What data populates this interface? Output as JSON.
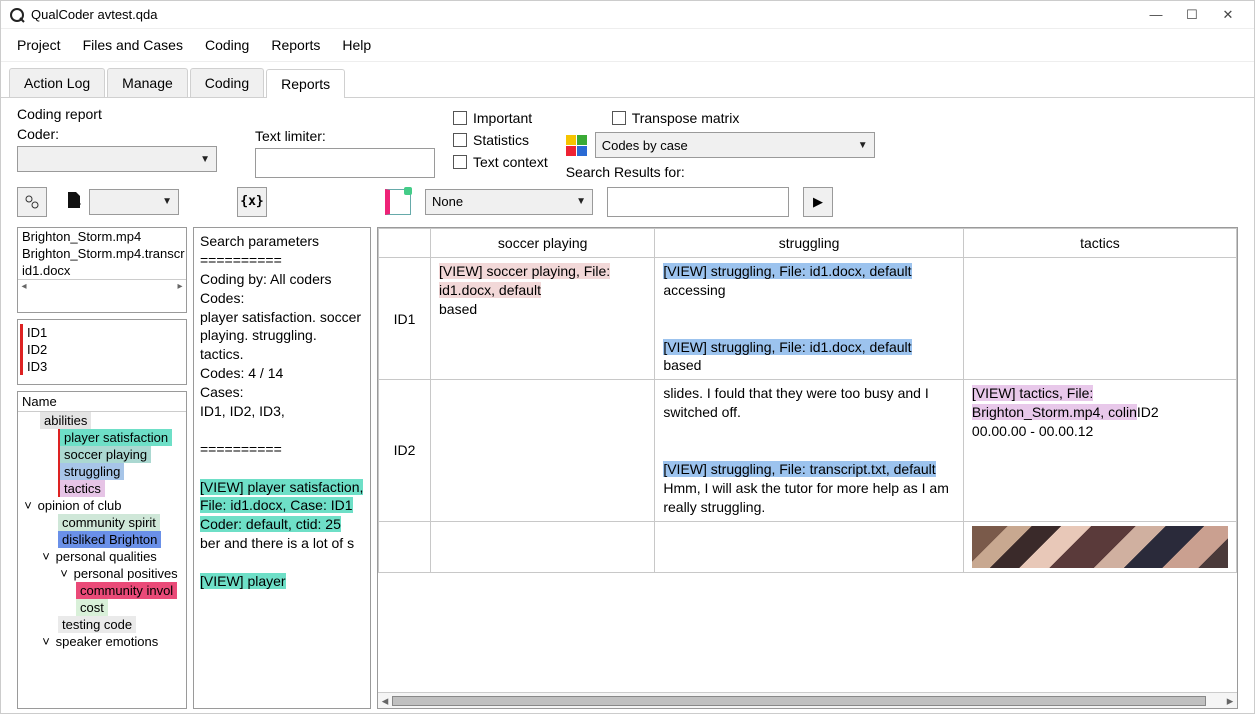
{
  "window": {
    "title": "QualCoder avtest.qda"
  },
  "menu": [
    "Project",
    "Files and Cases",
    "Coding",
    "Reports",
    "Help"
  ],
  "tabs": {
    "items": [
      "Action Log",
      "Manage",
      "Coding",
      "Reports"
    ],
    "active": 3
  },
  "controls": {
    "coding_report": "Coding report",
    "coder": "Coder:",
    "text_limiter": "Text limiter:",
    "chk_important": "Important",
    "chk_statistics": "Statistics",
    "chk_text_context": "Text context",
    "chk_transpose": "Transpose matrix",
    "matrix_combo": "Codes by case",
    "search_label": "Search Results for:",
    "filter_combo": "None"
  },
  "files_list": [
    "Brighton_Storm.mp4",
    "Brighton_Storm.mp4.transcr",
    "id1.docx"
  ],
  "cases_list": [
    "ID1",
    "ID2",
    "ID3"
  ],
  "tree": {
    "header": "Name",
    "nodes": [
      {
        "indent": 1,
        "exp": "",
        "label": "abilities",
        "bg": "#e4e4e4"
      },
      {
        "indent": 2,
        "exp": "",
        "label": "player satisfaction",
        "bg": "#6edfc7",
        "red": true
      },
      {
        "indent": 2,
        "exp": "",
        "label": "soccer playing",
        "bg": "#abd8d1",
        "red": true
      },
      {
        "indent": 2,
        "exp": "",
        "label": "struggling",
        "bg": "#a7c5e8",
        "red": true
      },
      {
        "indent": 2,
        "exp": "",
        "label": "tactics",
        "bg": "#e6c4e6",
        "red": true
      },
      {
        "indent": 0,
        "exp": "˅",
        "label": "opinion of club",
        "bg": ""
      },
      {
        "indent": 2,
        "exp": "",
        "label": "community spirit",
        "bg": "#cfe7d8"
      },
      {
        "indent": 2,
        "exp": "",
        "label": "disliked Brighton",
        "bg": "#6a90e8"
      },
      {
        "indent": 1,
        "exp": "˅",
        "label": "personal qualities",
        "bg": ""
      },
      {
        "indent": 2,
        "exp": "˅",
        "label": "personal positives",
        "bg": ""
      },
      {
        "indent": 3,
        "exp": "",
        "label": "community invol",
        "bg": "#ea4a78"
      },
      {
        "indent": 3,
        "exp": "",
        "label": "cost",
        "bg": "#d9f0d9"
      },
      {
        "indent": 2,
        "exp": "",
        "label": "testing code",
        "bg": "#eaeaea"
      },
      {
        "indent": 1,
        "exp": "˅",
        "label": "speaker emotions",
        "bg": ""
      }
    ]
  },
  "search_panel": {
    "title": "Search parameters",
    "sep": "==========",
    "coding_by": "Coding by: All coders",
    "codes_hdr": "Codes:",
    "codes": "player satisfaction. soccer playing. struggling. tactics.",
    "codes_count": "Codes: 4 / 14",
    "cases_hdr": "Cases:",
    "cases": "ID1, ID2, ID3,",
    "view1_hl": "[VIEW] player satisfaction, File: id1.docx,  Case: ID1 Coder: default, ctid: 25",
    "view1_txt": "ber and there is a lot of s",
    "view2_hl": "[VIEW] player"
  },
  "colors": {
    "hl_player_sat": "#6edfc7",
    "hl_soccer": "#f2d8d8",
    "hl_struggling": "#9cc3ee",
    "hl_tactics": "#e8c8ea"
  },
  "matrix": {
    "columns": [
      "soccer playing",
      "struggling",
      "tactics"
    ],
    "rows": [
      "ID1",
      "ID2",
      ""
    ],
    "cells": [
      [
        {
          "segments": [
            {
              "hl": "[VIEW] soccer playing, File: id1.docx, default",
              "color": "hl_soccer"
            },
            {
              "text": "based"
            }
          ]
        },
        {
          "segments": [
            {
              "hl": "[VIEW] struggling, File: id1.docx, default",
              "color": "hl_struggling"
            },
            {
              "text": "accessing"
            },
            {
              "br": 2
            },
            {
              "hl": "[VIEW] struggling, File: id1.docx, default",
              "color": "hl_struggling"
            },
            {
              "text": "based"
            }
          ]
        },
        {
          "segments": []
        }
      ],
      [
        {
          "segments": []
        },
        {
          "segments": [
            {
              "text": "slides. I fould that they were too busy and I switched off."
            },
            {
              "br": 2
            },
            {
              "hl": "[VIEW] struggling, File: transcript.txt, default",
              "color": "hl_struggling"
            },
            {
              "text": "Hmm, I will ask the tutor for more help as I am really struggling."
            }
          ]
        },
        {
          "segments": [
            {
              "hl": "[VIEW] tactics, File: Brighton_Storm.mp4, colin",
              "color": "hl_tactics",
              "suffix": "ID2"
            },
            {
              "text": "00.00.00 - 00.00.12"
            }
          ]
        }
      ],
      [
        {
          "segments": []
        },
        {
          "segments": []
        },
        {
          "segments": [],
          "image": true
        }
      ]
    ]
  }
}
